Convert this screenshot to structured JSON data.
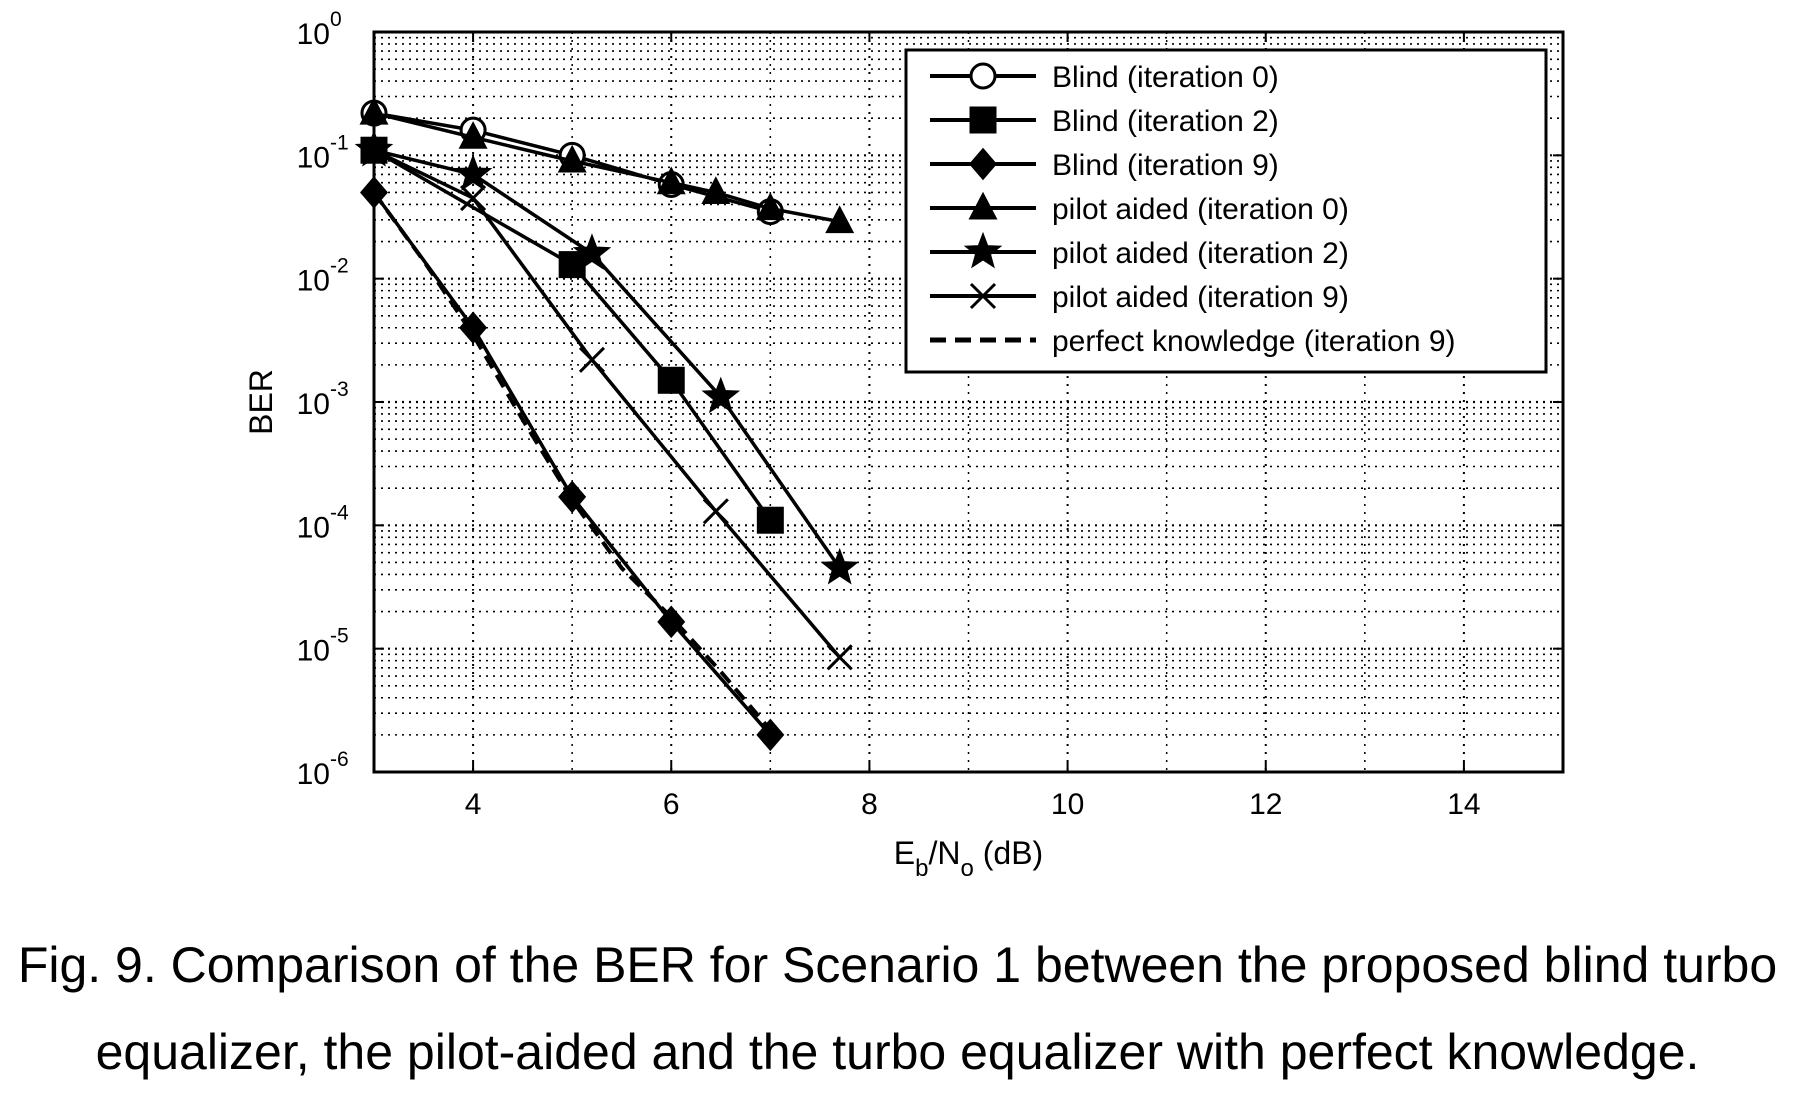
{
  "chart_data": {
    "type": "line",
    "xlabel": "E_b/N_o (dB)",
    "xlabel_parts": {
      "main": "E",
      "sub1": "b",
      "mid": "/N",
      "sub2": "o",
      "end": " (dB)"
    },
    "ylabel": "BER",
    "xlim": [
      3,
      15
    ],
    "ylim": [
      1e-06,
      1
    ],
    "y_scale": "log",
    "x_ticks": [
      4,
      6,
      8,
      10,
      12,
      14
    ],
    "x_tick_labels": [
      "4",
      "6",
      "8",
      "10",
      "12",
      "14"
    ],
    "y_ticks": [
      1e-06,
      1e-05,
      0.0001,
      0.001,
      0.01,
      0.1,
      1
    ],
    "y_tick_labels": [
      {
        "base": "10",
        "exp": "-6"
      },
      {
        "base": "10",
        "exp": "-5"
      },
      {
        "base": "10",
        "exp": "-4"
      },
      {
        "base": "10",
        "exp": "-3"
      },
      {
        "base": "10",
        "exp": "-2"
      },
      {
        "base": "10",
        "exp": "-1"
      },
      {
        "base": "10",
        "exp": "0"
      }
    ],
    "grid": true,
    "legend_position": "top-right",
    "series": [
      {
        "name": "Blind (iteration 0)",
        "marker": "circle",
        "line": "solid",
        "x": [
          3,
          4,
          5,
          6,
          7
        ],
        "y": [
          0.22,
          0.16,
          0.1,
          0.058,
          0.035
        ]
      },
      {
        "name": "Blind (iteration 2)",
        "marker": "square",
        "line": "solid",
        "x": [
          3,
          5,
          6,
          7
        ],
        "y": [
          0.11,
          0.013,
          0.0015,
          0.00011
        ]
      },
      {
        "name": "Blind (iteration 9)",
        "marker": "diamond",
        "line": "solid",
        "x": [
          3,
          4,
          5,
          6,
          7
        ],
        "y": [
          0.05,
          0.004,
          0.00017,
          1.65e-05,
          2e-06
        ]
      },
      {
        "name": "pilot aided (iteration 0)",
        "marker": "triangle",
        "line": "solid",
        "x": [
          3,
          4,
          5,
          6,
          6.45,
          7,
          7.7
        ],
        "y": [
          0.22,
          0.14,
          0.09,
          0.06,
          0.05,
          0.037,
          0.029
        ]
      },
      {
        "name": "pilot aided (iteration 2)",
        "marker": "star",
        "line": "solid",
        "x": [
          3,
          4,
          5.2,
          6.5,
          7.7
        ],
        "y": [
          0.11,
          0.07,
          0.016,
          0.0011,
          4.5e-05
        ]
      },
      {
        "name": "pilot aided (iteration 9)",
        "marker": "x",
        "line": "solid",
        "x": [
          3,
          4,
          5.2,
          6.45,
          7.7
        ],
        "y": [
          0.11,
          0.045,
          0.0022,
          0.00013,
          8.5e-06
        ]
      },
      {
        "name": "perfect knowledge (iteration 9)",
        "marker": "none",
        "line": "dashed",
        "x": [
          3,
          3.5,
          4,
          4.5,
          5,
          5.5,
          6,
          6.5,
          7
        ],
        "y": [
          0.05,
          0.014,
          0.0035,
          0.00072,
          0.00016,
          4.5e-05,
          1.8e-05,
          6.5e-06,
          2.2e-06
        ]
      }
    ]
  },
  "caption": {
    "line1": "Fig. 9. Comparison of the BER for Scenario 1 between the proposed blind turbo",
    "line2": "equalizer, the pilot-aided and the turbo equalizer with perfect knowledge."
  }
}
